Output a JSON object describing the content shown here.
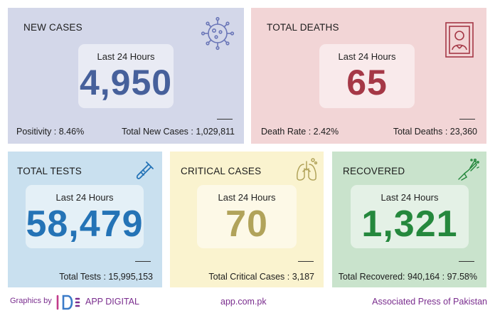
{
  "new_cases": {
    "title": "NEW CASES",
    "period": "Last 24 Hours",
    "value": "4,950",
    "left_stat": "Positivity : 8.46%",
    "right_stat": "Total New Cases : 1,029,811",
    "icon": "virus-icon"
  },
  "total_deaths": {
    "title": "TOTAL DEATHS",
    "period": "Last 24 Hours",
    "value": "65",
    "left_stat": "Death Rate : 2.42%",
    "right_stat": "Total Deaths : 23,360",
    "icon": "portrait-frame-icon"
  },
  "total_tests": {
    "title": "TOTAL TESTS",
    "period": "Last 24 Hours",
    "value": "58,479",
    "stat": "Total Tests : 15,995,153",
    "icon": "test-tube-icon"
  },
  "critical_cases": {
    "title": "CRITICAL CASES",
    "period": "Last 24 Hours",
    "value": "70",
    "stat": "Total Critical Cases : 3,187",
    "icon": "lungs-icon"
  },
  "recovered": {
    "title": "RECOVERED",
    "period": "Last 24 Hours",
    "value": "1,321",
    "stat": "Total Recovered: 940,164 : 97.58%",
    "icon": "hand-sanitize-icon"
  },
  "footer": {
    "graphics_by": "Graphics by",
    "brand": "APP DIGITAL",
    "url": "app.com.pk",
    "agency": "Associated Press of Pakistan"
  },
  "colors": {
    "new_cases_bg": "#d3d7e9",
    "deaths_bg": "#f2d5d6",
    "tests_bg": "#c9e0ef",
    "critical_bg": "#faf3cf",
    "recovered_bg": "#c9e3cc",
    "footer_text": "#7a2d8e"
  }
}
